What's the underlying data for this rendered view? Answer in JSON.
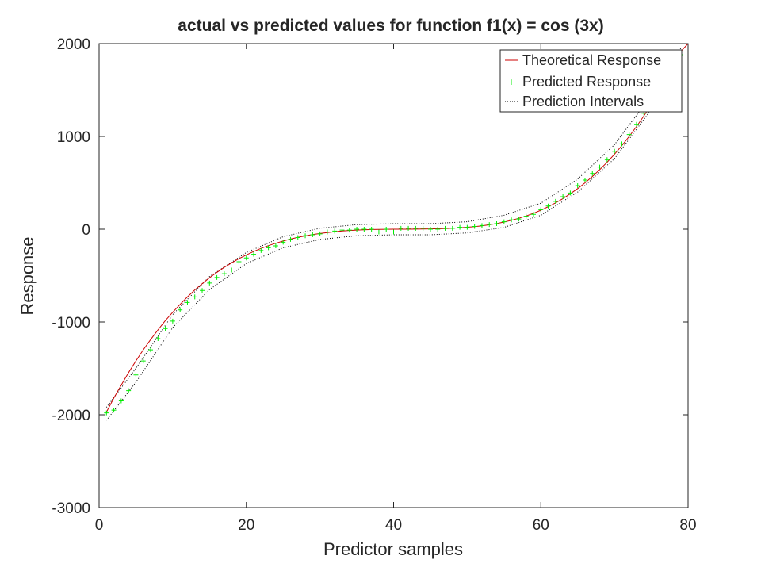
{
  "chart_data": {
    "type": "line",
    "title": "actual vs predicted values for function f1(x) = cos (3x)",
    "xlabel": "Predictor samples",
    "ylabel": "Response",
    "xlim": [
      0,
      80
    ],
    "ylim": [
      -3000,
      2000
    ],
    "xticks": [
      0,
      20,
      40,
      60,
      80
    ],
    "yticks": [
      -3000,
      -2000,
      -1000,
      0,
      1000,
      2000
    ],
    "grid": false,
    "legend_position": "top-right",
    "colors": {
      "theoretical": "#cc0000",
      "predicted": "#00ee00",
      "intervals": "#000000"
    },
    "series": [
      {
        "name": "Theoretical Response",
        "style": "line",
        "x": [
          1,
          2,
          3,
          4,
          5,
          6,
          7,
          8,
          9,
          10,
          11,
          12,
          13,
          14,
          15,
          16,
          17,
          18,
          19,
          20,
          21,
          22,
          23,
          24,
          25,
          26,
          27,
          28,
          29,
          30,
          31,
          32,
          33,
          34,
          35,
          36,
          37,
          38,
          39,
          40,
          41,
          42,
          43,
          44,
          45,
          46,
          47,
          48,
          49,
          50,
          51,
          52,
          53,
          54,
          55,
          56,
          57,
          58,
          59,
          60,
          61,
          62,
          63,
          64,
          65,
          66,
          67,
          68,
          69,
          70,
          71,
          72,
          73,
          74,
          75,
          76,
          77,
          78,
          79,
          80
        ],
        "y": [
          -1970,
          -1820,
          -1680,
          -1545,
          -1420,
          -1300,
          -1190,
          -1085,
          -985,
          -895,
          -810,
          -730,
          -655,
          -587,
          -523,
          -465,
          -411,
          -362,
          -317,
          -277,
          -240,
          -207,
          -177,
          -151,
          -127,
          -106,
          -88,
          -72,
          -58,
          -46,
          -36,
          -27,
          -20,
          -14,
          -9,
          -6,
          -3,
          -2,
          -1,
          0,
          0,
          0,
          1,
          2,
          3,
          5,
          7,
          11,
          15,
          21,
          28,
          37,
          48,
          61,
          77,
          96,
          118,
          143,
          172,
          205,
          242,
          284,
          330,
          382,
          438,
          500,
          568,
          641,
          721,
          807,
          900,
          1000,
          1107,
          1221,
          1343,
          1473,
          1612,
          1759,
          1914,
          2000
        ]
      },
      {
        "name": "Predicted Response",
        "style": "markers",
        "marker": "+",
        "x": [
          1,
          2,
          3,
          4,
          5,
          6,
          7,
          8,
          9,
          10,
          11,
          12,
          13,
          14,
          15,
          16,
          17,
          18,
          19,
          20,
          21,
          22,
          23,
          24,
          25,
          26,
          27,
          28,
          29,
          30,
          31,
          32,
          33,
          34,
          35,
          36,
          37,
          38,
          39,
          40,
          41,
          42,
          43,
          44,
          45,
          46,
          47,
          48,
          49,
          50,
          51,
          52,
          53,
          54,
          55,
          56,
          57,
          58,
          59,
          60,
          61,
          62,
          63,
          64,
          65,
          66,
          67,
          68,
          69,
          70,
          71,
          72,
          73,
          74,
          75,
          76,
          77,
          78,
          79
        ],
        "y": [
          -1980,
          -1950,
          -1850,
          -1740,
          -1570,
          -1420,
          -1300,
          -1180,
          -1070,
          -990,
          -870,
          -790,
          -730,
          -660,
          -580,
          -520,
          -480,
          -440,
          -350,
          -310,
          -270,
          -230,
          -200,
          -180,
          -140,
          -110,
          -90,
          -70,
          -60,
          -50,
          -30,
          -20,
          -10,
          -10,
          0,
          0,
          0,
          -30,
          0,
          -30,
          10,
          10,
          10,
          10,
          0,
          0,
          10,
          10,
          20,
          20,
          30,
          40,
          50,
          60,
          80,
          100,
          110,
          140,
          160,
          210,
          250,
          300,
          350,
          390,
          470,
          530,
          600,
          670,
          750,
          840,
          920,
          1020,
          1130,
          1250,
          1370,
          1500,
          1630,
          1760,
          1880
        ]
      },
      {
        "name": "Prediction Intervals",
        "style": "dotted",
        "x": [
          1,
          5,
          10,
          15,
          20,
          25,
          30,
          35,
          40,
          45,
          50,
          55,
          60,
          65,
          70,
          75,
          79
        ],
        "upper": [
          -1920,
          -1500,
          -920,
          -510,
          -250,
          -80,
          10,
          50,
          60,
          60,
          80,
          150,
          280,
          540,
          910,
          1440,
          1950
        ],
        "lower": [
          -2060,
          -1650,
          -1060,
          -650,
          -370,
          -200,
          -110,
          -70,
          -60,
          -60,
          -40,
          20,
          150,
          400,
          760,
          1290,
          1810
        ]
      }
    ]
  }
}
